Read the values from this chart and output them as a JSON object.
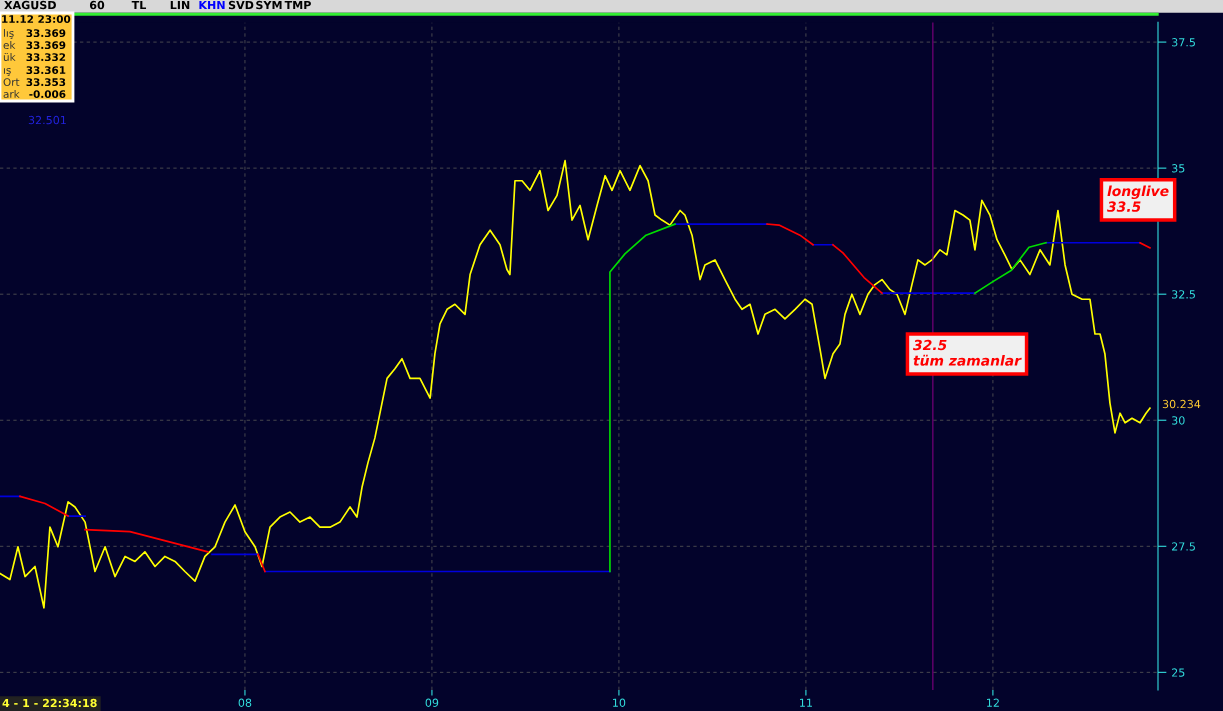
{
  "chart_data": {
    "type": "line",
    "title": "XAGUSD",
    "x": [
      6.69,
      6.743,
      6.786,
      6.824,
      6.877,
      6.925,
      6.957,
      7.0,
      7.054,
      7.091,
      7.145,
      7.198,
      7.252,
      7.305,
      7.359,
      7.412,
      7.465,
      7.519,
      7.572,
      7.626,
      7.679,
      7.733,
      7.786,
      7.84,
      7.893,
      7.947,
      8.0,
      8.054,
      8.091,
      8.134,
      8.187,
      8.241,
      8.294,
      8.348,
      8.401,
      8.455,
      8.508,
      8.562,
      8.599,
      8.626,
      8.658,
      8.695,
      8.722,
      8.76,
      8.802,
      8.84,
      8.883,
      8.936,
      8.99,
      9.016,
      9.043,
      9.081,
      9.123,
      9.177,
      9.204,
      9.257,
      9.311,
      9.364,
      9.401,
      9.417,
      9.444,
      9.482,
      9.524,
      9.578,
      9.621,
      9.669,
      9.712,
      9.749,
      9.792,
      9.835,
      9.883,
      9.926,
      9.963,
      10.006,
      10.059,
      10.113,
      10.156,
      10.193,
      10.23,
      10.273,
      10.327,
      10.353,
      10.391,
      10.434,
      10.46,
      10.514,
      10.567,
      10.621,
      10.658,
      10.701,
      10.744,
      10.781,
      10.835,
      10.888,
      10.942,
      10.995,
      11.033,
      11.075,
      11.102,
      11.145,
      11.182,
      11.209,
      11.246,
      11.289,
      11.332,
      11.369,
      11.407,
      11.45,
      11.487,
      11.53,
      11.567,
      11.599,
      11.637,
      11.674,
      11.717,
      11.754,
      11.797,
      11.84,
      11.877,
      11.904,
      11.941,
      11.984,
      12.022,
      12.064,
      12.102,
      12.145,
      12.198,
      12.252,
      12.305,
      12.348,
      12.386,
      12.423,
      12.477,
      12.519,
      12.546,
      12.573,
      12.599,
      12.626,
      12.653,
      12.68,
      12.707,
      12.744,
      12.787,
      12.819,
      12.84
    ],
    "series": [
      {
        "color": "#ffff00",
        "values": [
          26.96,
          26.84,
          27.49,
          26.9,
          27.1,
          26.28,
          27.88,
          27.49,
          28.38,
          28.28,
          27.98,
          27.0,
          27.49,
          26.9,
          27.3,
          27.2,
          27.39,
          27.1,
          27.3,
          27.2,
          27.0,
          26.81,
          27.3,
          27.49,
          27.98,
          28.32,
          27.79,
          27.49,
          27.1,
          27.88,
          28.08,
          28.18,
          27.98,
          28.08,
          27.88,
          27.88,
          27.98,
          28.28,
          28.08,
          28.67,
          29.16,
          29.65,
          30.14,
          30.83,
          31.02,
          31.22,
          30.83,
          30.83,
          30.44,
          31.32,
          31.91,
          32.2,
          32.3,
          32.1,
          32.89,
          33.48,
          33.77,
          33.48,
          32.99,
          32.89,
          34.75,
          34.75,
          34.56,
          34.95,
          34.16,
          34.46,
          35.15,
          33.97,
          34.26,
          33.58,
          34.26,
          34.85,
          34.56,
          34.95,
          34.56,
          35.05,
          34.75,
          34.07,
          33.97,
          33.87,
          34.16,
          34.07,
          33.67,
          32.79,
          33.08,
          33.18,
          32.79,
          32.4,
          32.2,
          32.3,
          31.71,
          32.1,
          32.2,
          32.01,
          32.2,
          32.4,
          32.3,
          31.42,
          30.83,
          31.32,
          31.51,
          32.1,
          32.5,
          32.1,
          32.5,
          32.69,
          32.79,
          32.59,
          32.5,
          32.1,
          32.69,
          33.18,
          33.08,
          33.18,
          33.38,
          33.28,
          34.16,
          34.07,
          33.97,
          33.38,
          34.36,
          34.07,
          33.58,
          33.28,
          32.99,
          33.18,
          32.89,
          33.38,
          33.08,
          34.16,
          33.08,
          32.5,
          32.4,
          32.4,
          31.71,
          31.71,
          31.32,
          30.34,
          29.75,
          30.14,
          29.95,
          30.04,
          29.95,
          30.14,
          30.24
        ]
      },
      {
        "color": "#0000dd",
        "x": [
          6.69,
          6.797,
          6.798,
          7.054,
          7.145,
          7.146,
          7.824,
          8.07,
          8.071,
          8.107,
          9.952,
          9.953,
          10.3,
          10.792,
          10.793,
          11.038,
          11.145,
          11.146,
          11.407,
          11.904,
          11.905,
          12.284,
          12.787
        ],
        "values": [
          28.49,
          28.49,
          null,
          28.1,
          28.1,
          null,
          27.34,
          27.34,
          null,
          27.0,
          27.0,
          null,
          33.89,
          33.89,
          null,
          33.48,
          33.48,
          null,
          32.52,
          32.52,
          null,
          33.52,
          33.52
        ]
      },
      {
        "color": "#ff0000",
        "x": [
          6.797,
          6.931,
          7.054,
          7.055,
          7.145,
          7.385,
          7.802,
          7.803,
          8.07,
          8.107,
          8.108,
          10.792,
          10.856,
          10.968,
          11.038,
          11.039,
          11.145,
          11.198,
          11.311,
          11.407,
          11.408,
          12.787,
          12.84
        ],
        "values": [
          28.49,
          28.35,
          28.1,
          null,
          27.83,
          27.79,
          27.39,
          null,
          27.34,
          27.0,
          null,
          33.89,
          33.87,
          33.67,
          33.48,
          null,
          33.48,
          33.32,
          32.83,
          32.52,
          null,
          33.52,
          33.42
        ]
      },
      {
        "color": "#00dd00",
        "x": [
          9.952,
          9.952,
          10.032,
          10.145,
          10.3,
          10.301,
          11.904,
          12.0,
          12.097,
          12.193,
          12.284
        ],
        "values": [
          27.0,
          32.94,
          33.3,
          33.67,
          33.89,
          null,
          32.52,
          32.75,
          32.97,
          33.43,
          33.52
        ]
      }
    ],
    "xlim": [
      6.69,
      12.883
    ],
    "xticks": [
      {
        "value": 8,
        "label": "08"
      },
      {
        "value": 9,
        "label": "09"
      },
      {
        "value": 10,
        "label": "10"
      },
      {
        "value": 11,
        "label": "11"
      },
      {
        "value": 12,
        "label": "12"
      }
    ],
    "ylim": [
      24.65,
      37.89
    ],
    "yticks": [
      25,
      27.5,
      30,
      32.5,
      35,
      37.5
    ],
    "grid": true,
    "marker": "none",
    "line_style": "solid",
    "ref_lines": [
      {
        "axis": "x",
        "value": 11.679,
        "color": "#800080"
      }
    ],
    "annotations": [
      "longlive\n33.5",
      "32.5\ntüm zamanlar",
      "60",
      "TL",
      "LIN",
      "KHN",
      "SVD",
      "SYM",
      "TMP",
      "11.12 23:00",
      "lış",
      "33.369",
      "ek",
      "33.369",
      "ük",
      "33.332",
      "ış",
      "33.361",
      "Ort",
      "33.353",
      "ark",
      "-0.006",
      "32.501",
      "30.234",
      "4 - 1 - 22:34:18"
    ]
  }
}
